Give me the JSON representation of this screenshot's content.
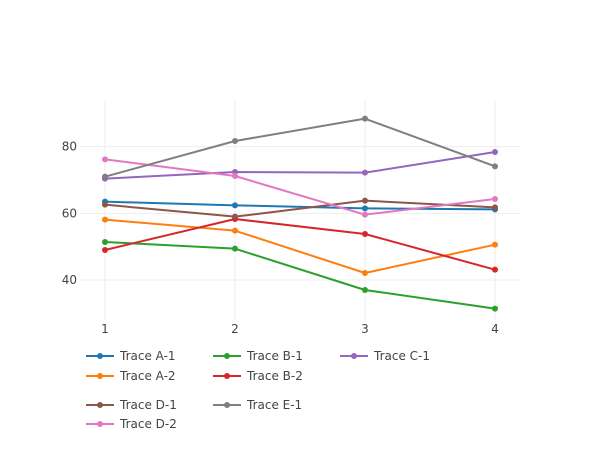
{
  "chart_data": {
    "type": "line",
    "x": [
      1,
      2,
      3,
      4
    ],
    "xticks": [
      "1",
      "2",
      "3",
      "4"
    ],
    "yticks": [
      "40",
      "60",
      "80"
    ],
    "ylim": [
      28,
      94
    ],
    "grid": true,
    "legend_position": "bottom",
    "series": [
      {
        "name": "Trace A-1",
        "color": "#1f77b4",
        "values": [
          63.5,
          62.4,
          61.5,
          61.2
        ]
      },
      {
        "name": "Trace A-2",
        "color": "#ff7f0e",
        "values": [
          58.1,
          54.8,
          42.1,
          50.6
        ]
      },
      {
        "name": "Trace B-1",
        "color": "#2ca02c",
        "values": [
          51.4,
          49.4,
          37.0,
          31.4
        ]
      },
      {
        "name": "Trace B-2",
        "color": "#d62728",
        "values": [
          49.0,
          58.3,
          53.8,
          43.1
        ]
      },
      {
        "name": "Trace C-1",
        "color": "#9467bd",
        "values": [
          70.4,
          72.4,
          72.2,
          78.4
        ]
      },
      {
        "name": "Trace D-1",
        "color": "#8c564b",
        "values": [
          62.6,
          59.0,
          63.8,
          61.8
        ]
      },
      {
        "name": "Trace D-2",
        "color": "#e377c2",
        "values": [
          76.2,
          71.2,
          59.6,
          64.3
        ]
      },
      {
        "name": "Trace E-1",
        "color": "#7f7f7f",
        "values": [
          71.0,
          81.7,
          88.4,
          74.1
        ]
      }
    ]
  }
}
